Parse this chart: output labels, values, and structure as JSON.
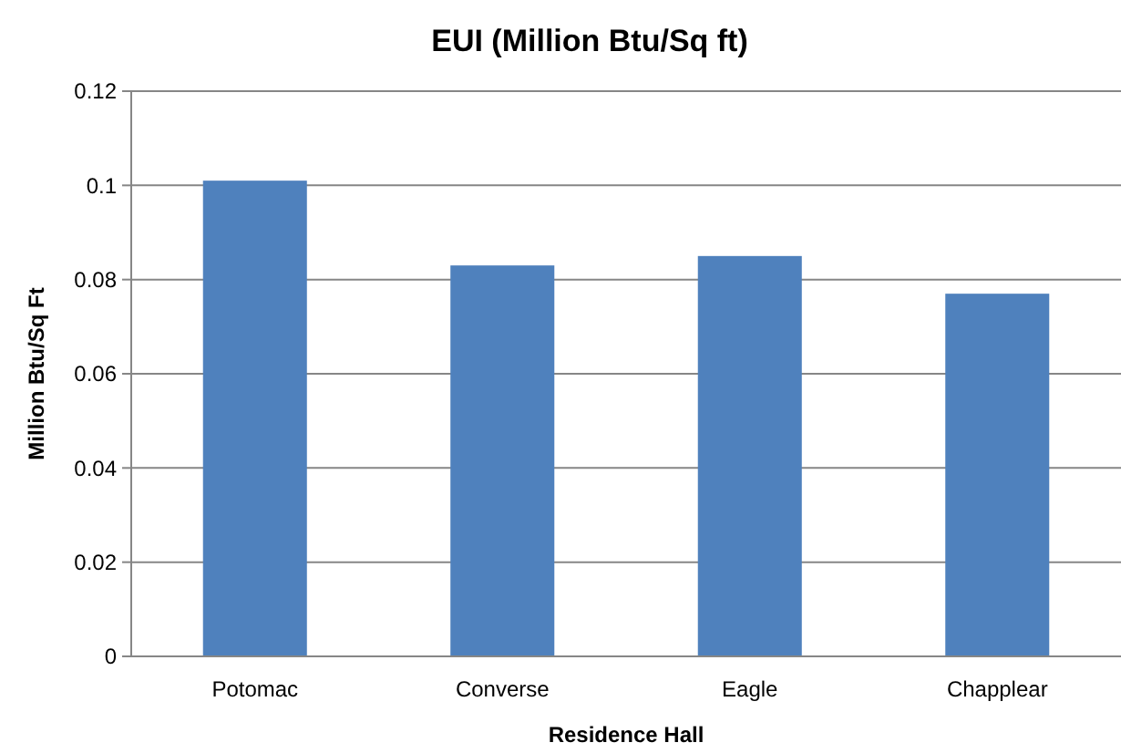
{
  "chart_data": {
    "type": "bar",
    "title": "EUI (Million Btu/Sq ft)",
    "xlabel": "Residence Hall",
    "ylabel": "Million Btu/Sq Ft",
    "categories": [
      "Potomac",
      "Converse",
      "Eagle",
      "Chapplear"
    ],
    "values": [
      0.101,
      0.083,
      0.085,
      0.077
    ],
    "color": "#4f81bd",
    "ylim": [
      0,
      0.12
    ],
    "yticks": [
      0,
      0.02,
      0.04,
      0.06,
      0.08,
      0.1,
      0.12
    ],
    "grid": "y"
  }
}
